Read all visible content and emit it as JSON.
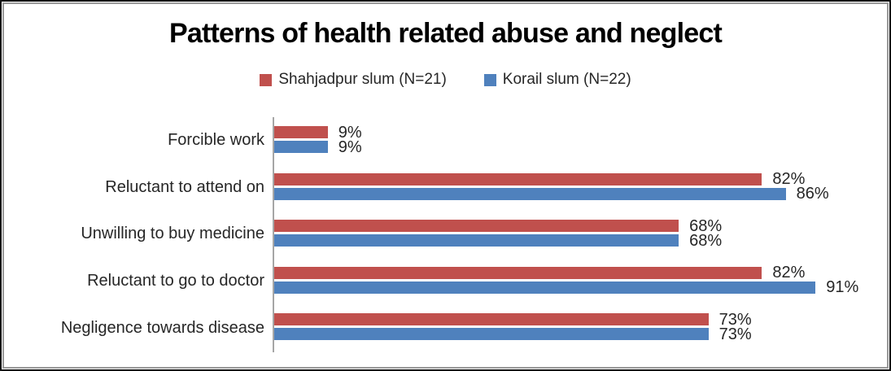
{
  "chart_data": {
    "type": "bar",
    "orientation": "horizontal",
    "title": "Patterns of health related abuse and neglect",
    "categories": [
      "Forcible work",
      "Reluctant to attend on",
      "Unwilling to buy medicine",
      "Reluctant to go to doctor",
      "Negligence towards disease"
    ],
    "series": [
      {
        "name": "Shahjadpur slum (N=21)",
        "color": "#C0504D",
        "values": [
          9,
          82,
          68,
          82,
          73
        ]
      },
      {
        "name": "Korail slum (N=22)",
        "color": "#4F81BD",
        "values": [
          9,
          86,
          68,
          91,
          73
        ]
      }
    ],
    "xlim": [
      0,
      100
    ],
    "value_suffix": "%",
    "data_labels": "outside-end",
    "legend_position": "top",
    "grid": false,
    "axis_color": "#A6A6A6",
    "text_color": "#262626",
    "title_color": "#000000"
  }
}
